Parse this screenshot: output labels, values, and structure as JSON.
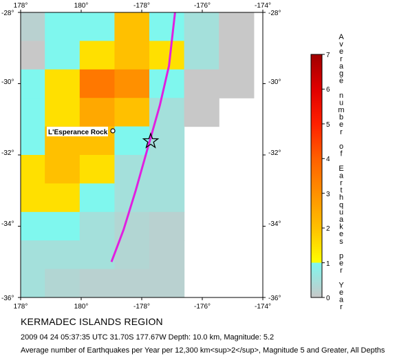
{
  "map": {
    "region_title": "KERMADEC ISLANDS REGION",
    "event_line": "2009 04 24 05:37:35 UTC 31.70S 177.67W Depth: 10.0 km, Magnitude: 5.2",
    "footnote": "Average number of Earthquakes per Year per 12,300 km<sup>2</sup>, Magnitude 5 and Greater, All Depths",
    "lon_range": [
      178,
      186
    ],
    "lat_range": [
      -36,
      -28
    ],
    "x_tick_labels_top": [
      "178°",
      "180°",
      "-178°",
      "-176°",
      "-174°"
    ],
    "x_tick_labels_bottom": [
      "178°",
      "180°",
      "-178°",
      "-176°",
      "-174°"
    ],
    "y_tick_labels_left": [
      "-28°",
      "-30°",
      "-32°",
      "-34°",
      "-36°"
    ],
    "y_tick_labels_right": [
      "-28°",
      "-30°",
      "-32°",
      "-34°",
      "-36°"
    ],
    "epicenter": {
      "lon": 182.33,
      "lat": -31.7,
      "marker": "star-icon"
    },
    "place_marker": {
      "name": "L'Esperance Rock",
      "lon": 181.1,
      "lat": -31.35
    },
    "trench_line": [
      [
        183.1,
        -28
      ],
      [
        182.9,
        -29.5
      ],
      [
        182.6,
        -30.6
      ],
      [
        182.2,
        -31.8
      ],
      [
        181.8,
        -33.0
      ],
      [
        181.4,
        -34.1
      ],
      [
        181.0,
        -35.0
      ]
    ],
    "grid_origin": {
      "lon": 178,
      "lat": -28
    },
    "cell_size_deg": [
      1.15,
      1.0
    ],
    "rate_grid_rows_north_to_south": [
      [
        0.2,
        1.0,
        1.0,
        2.0,
        1.0,
        0.5,
        0.0
      ],
      [
        0.0,
        1.0,
        1.5,
        2.0,
        1.5,
        0.5,
        0.0
      ],
      [
        1.0,
        1.5,
        3.5,
        3.0,
        1.0,
        0.0,
        0.0
      ],
      [
        1.0,
        1.5,
        2.5,
        2.0,
        0.5,
        0.0,
        null
      ],
      [
        1.0,
        2.0,
        2.0,
        1.0,
        0.5,
        null,
        null
      ],
      [
        1.5,
        2.0,
        1.5,
        0.5,
        0.5,
        null,
        null
      ],
      [
        1.5,
        1.5,
        1.0,
        0.5,
        0.5,
        null,
        null
      ],
      [
        1.0,
        1.0,
        0.5,
        0.3,
        0.2,
        null,
        null
      ],
      [
        0.5,
        0.5,
        0.5,
        0.3,
        0.2,
        null,
        null
      ],
      [
        0.5,
        0.3,
        0.2,
        0.2,
        0.2,
        null,
        null
      ]
    ]
  },
  "colorbar": {
    "title_letters": [
      "A",
      "v",
      "e",
      "r",
      "a",
      "g",
      "e",
      "",
      "n",
      "u",
      "m",
      "b",
      "e",
      "r",
      "",
      "o",
      "f",
      "",
      "E",
      "a",
      "r",
      "t",
      "h",
      "q",
      "u",
      "a",
      "k",
      "e",
      "s",
      "",
      "p",
      "e",
      "r",
      "",
      "Y",
      "e",
      "a",
      "r"
    ],
    "tick_labels": [
      "0",
      "1",
      "2",
      "3",
      "4",
      "5",
      "6",
      "7"
    ],
    "range": [
      0,
      7
    ],
    "stops": [
      {
        "value": 0,
        "color": "#c8c8c8"
      },
      {
        "value": 1,
        "color": "#7ff7ee"
      },
      {
        "value": 1.001,
        "color": "#ffff00"
      },
      {
        "value": 2,
        "color": "#ffc000"
      },
      {
        "value": 3,
        "color": "#ff9000"
      },
      {
        "value": 4,
        "color": "#ff6000"
      },
      {
        "value": 5,
        "color": "#ff2000"
      },
      {
        "value": 6,
        "color": "#e00000"
      },
      {
        "value": 7,
        "color": "#a00000"
      }
    ]
  },
  "colors": {
    "trench": "#e020e0",
    "frame": "#000000"
  }
}
